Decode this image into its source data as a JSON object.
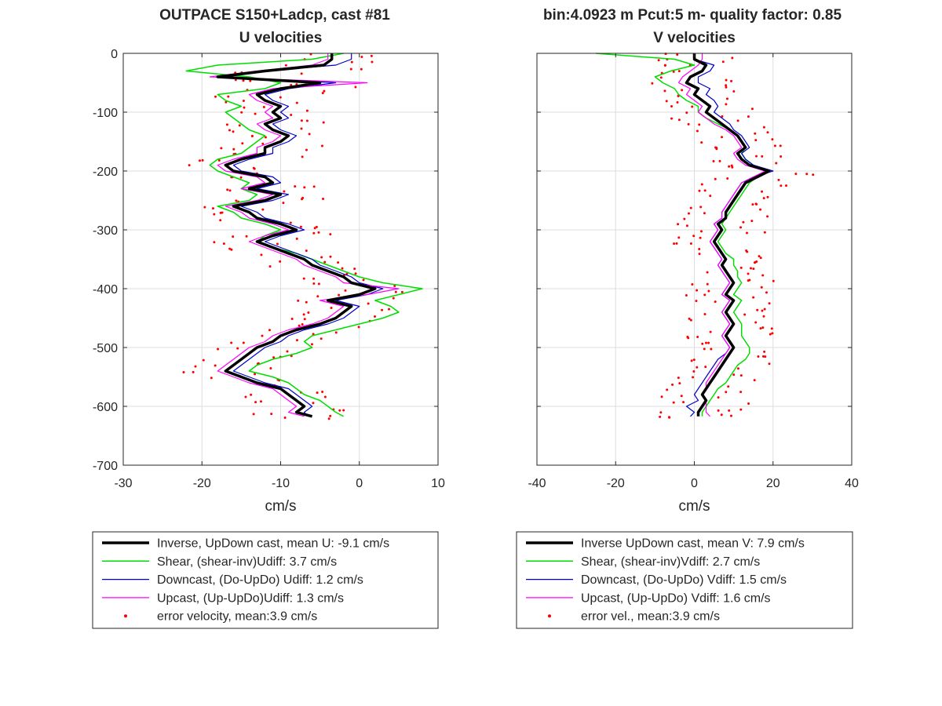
{
  "chart_data": [
    {
      "type": "line",
      "title": "OUTPACE S150+Ladcp, cast #81",
      "subtitle": "U velocities",
      "xlabel": "cm/s",
      "ylabel": "",
      "xlim": [
        -30,
        10
      ],
      "ylim": [
        -700,
        0
      ],
      "xticks": [
        -30,
        -20,
        -10,
        0,
        10
      ],
      "yticks": [
        0,
        -100,
        -200,
        -300,
        -400,
        -500,
        -600,
        -700
      ],
      "grid": true,
      "legend_position": "below",
      "depth": [
        0,
        -10,
        -20,
        -30,
        -40,
        -50,
        -60,
        -70,
        -80,
        -90,
        -100,
        -110,
        -120,
        -130,
        -140,
        -150,
        -160,
        -170,
        -180,
        -190,
        -200,
        -210,
        -220,
        -230,
        -240,
        -250,
        -260,
        -270,
        -280,
        -290,
        -300,
        -310,
        -320,
        -330,
        -340,
        -350,
        -360,
        -370,
        -380,
        -390,
        -400,
        -410,
        -420,
        -430,
        -440,
        -450,
        -460,
        -470,
        -480,
        -490,
        -500,
        -510,
        -520,
        -530,
        -540,
        -550,
        -560,
        -570,
        -580,
        -590,
        -600,
        -610,
        -617
      ],
      "series": [
        {
          "name": "Inverse, UpDown cast, mean U:  -9.1 cm/s",
          "color": "#000000",
          "width": 3.5,
          "values": [
            -3.5,
            -3.5,
            -4.5,
            -12,
            -18,
            -5,
            -10,
            -13,
            -12,
            -10,
            -11,
            -10,
            -12,
            -11,
            -9,
            -10,
            -12,
            -12,
            -15,
            -17,
            -16,
            -12,
            -11,
            -14,
            -10,
            -12,
            -16,
            -14,
            -13,
            -10,
            -8,
            -11,
            -13,
            -11,
            -9,
            -7,
            -6,
            -4,
            -2,
            -1,
            2,
            0,
            -4,
            -1,
            -2,
            -3,
            -5,
            -8,
            -10,
            -11,
            -13,
            -14,
            -15,
            -16,
            -17,
            -15,
            -13,
            -10,
            -9,
            -8,
            -7,
            -8,
            -6
          ]
        },
        {
          "name": "Shear, (shear-inv)Udiff:  3.7 cm/s",
          "color": "#00dd00",
          "width": 1.5,
          "values": [
            -2,
            -6,
            -18,
            -22,
            -14,
            -10,
            -12,
            -18,
            -17,
            -15,
            -17,
            -16,
            -15,
            -14,
            -12,
            -13,
            -14,
            -15,
            -18,
            -19,
            -18,
            -16,
            -14,
            -15,
            -13,
            -14,
            -18,
            -16,
            -15,
            -12,
            -10,
            -12,
            -13,
            -11,
            -8,
            -6,
            -4,
            -2,
            0,
            3,
            8,
            5,
            2,
            4,
            5,
            3,
            0,
            -3,
            -6,
            -7,
            -6,
            -8,
            -11,
            -13,
            -14,
            -11,
            -9,
            -8,
            -7,
            -5,
            -4,
            -3,
            -2
          ]
        },
        {
          "name": "Downcast, (Do-UpDo) Udiff:  1.2 cm/s",
          "color": "#0000cc",
          "width": 1.2,
          "values": [
            -1,
            -1,
            -3,
            -12,
            -17,
            -3,
            -9,
            -12,
            -11,
            -9,
            -10,
            -9,
            -11,
            -10,
            -8,
            -9,
            -11,
            -11,
            -14,
            -16,
            -15,
            -11,
            -10,
            -13,
            -9,
            -11,
            -15,
            -13,
            -12,
            -9,
            -7,
            -10,
            -12,
            -10,
            -8,
            -6,
            -5,
            -3,
            -1,
            0,
            3,
            1,
            -3,
            0,
            -1,
            -2,
            -4,
            -7,
            -9,
            -10,
            -12,
            -13,
            -14,
            -15,
            -16,
            -14,
            -12,
            -9,
            -8,
            -7,
            -6,
            -7,
            -6.5
          ]
        },
        {
          "name": "Upcast, (Up-UpDo)Udiff:  1.3 cm/s",
          "color": "#ff00ff",
          "width": 1.2,
          "values": [
            -4,
            -4,
            -6,
            -13,
            -19,
            1,
            -11,
            -14,
            -13,
            -11,
            -12,
            -11,
            -13,
            -12,
            -10,
            -11,
            -13,
            -13,
            -16,
            -18,
            -17,
            -13,
            -12,
            -15,
            -11,
            -13,
            -17,
            -15,
            -14,
            -11,
            -9,
            -12,
            -14,
            -12,
            -10,
            -8,
            -7,
            -5,
            -3,
            -2,
            5,
            1,
            -5,
            -2,
            -3,
            -4,
            -6,
            -9,
            -11,
            -12,
            -14,
            -15,
            -16,
            -17,
            -18,
            -16,
            -14,
            -11,
            -10,
            -9,
            -8,
            -9,
            -7
          ]
        }
      ],
      "error_series": {
        "name": "error velocity, mean:3.9 cm/s",
        "color": "#ff0000"
      }
    },
    {
      "type": "line",
      "title": "bin:4.0923 m  Pcut:5 m- quality factor:  0.85",
      "subtitle": "V velocities",
      "xlabel": "cm/s",
      "ylabel": "",
      "xlim": [
        -40,
        40
      ],
      "ylim": [
        -700,
        0
      ],
      "xticks": [
        -40,
        -20,
        0,
        20,
        40
      ],
      "yticks": [
        0,
        -100,
        -200,
        -300,
        -400,
        -500,
        -600,
        -700
      ],
      "grid": true,
      "legend_position": "below",
      "depth": [
        0,
        -10,
        -20,
        -30,
        -40,
        -50,
        -60,
        -70,
        -80,
        -90,
        -100,
        -110,
        -120,
        -130,
        -140,
        -150,
        -160,
        -170,
        -180,
        -190,
        -200,
        -210,
        -220,
        -230,
        -240,
        -250,
        -260,
        -270,
        -280,
        -290,
        -300,
        -310,
        -320,
        -330,
        -340,
        -350,
        -360,
        -370,
        -380,
        -390,
        -400,
        -410,
        -420,
        -430,
        -440,
        -450,
        -460,
        -470,
        -480,
        -490,
        -500,
        -510,
        -520,
        -530,
        -540,
        -550,
        -560,
        -570,
        -580,
        -590,
        -600,
        -610,
        -617
      ],
      "series": [
        {
          "name": "Inverse UpDown cast, mean V:  7.9 cm/s",
          "color": "#000000",
          "width": 3.5,
          "values": [
            0,
            0,
            3,
            2,
            -1,
            -2,
            1,
            0,
            2,
            4,
            3,
            5,
            7,
            9,
            11,
            12,
            13,
            11,
            12,
            14,
            19,
            16,
            13,
            12,
            11,
            10,
            9,
            8,
            8,
            6,
            7,
            6,
            5,
            6,
            7,
            8,
            7,
            8,
            9,
            10,
            9,
            8,
            10,
            9,
            8,
            9,
            10,
            9,
            8,
            9,
            10,
            9,
            8,
            7,
            6,
            5,
            4,
            3,
            2,
            3,
            2,
            1,
            1
          ]
        },
        {
          "name": "Shear, (shear-inv)Vdiff:  2.7 cm/s",
          "color": "#00dd00",
          "width": 1.5,
          "values": [
            -25,
            -5,
            0,
            -6,
            -10,
            -8,
            -5,
            -4,
            -2,
            1,
            1,
            3,
            6,
            9,
            11,
            12,
            13,
            12,
            13,
            15,
            19,
            16,
            14,
            13,
            12,
            11,
            10,
            9,
            8,
            7,
            8,
            7,
            6,
            7,
            8,
            10,
            10,
            11,
            11,
            12,
            11,
            10,
            12,
            11,
            10,
            11,
            12,
            12,
            12,
            13,
            14,
            14,
            13,
            11,
            10,
            9,
            8,
            6,
            5,
            4,
            3,
            2,
            2
          ]
        },
        {
          "name": "Downcast, (Do-UpDo) Vdiff:  1.5 cm/s",
          "color": "#0000cc",
          "width": 1.2,
          "values": [
            0,
            0,
            5,
            4,
            1,
            1,
            4,
            3,
            5,
            6,
            5,
            7,
            9,
            10,
            12,
            13,
            14,
            12,
            13,
            15,
            20,
            15,
            12,
            11,
            10,
            9,
            8,
            7,
            7,
            5,
            6,
            5,
            4,
            5,
            6,
            7,
            6,
            7,
            8,
            9,
            8,
            7,
            9,
            8,
            7,
            8,
            9,
            8,
            7,
            8,
            9,
            8,
            6,
            5,
            4,
            3,
            2,
            1,
            0,
            1,
            -2,
            0,
            -1
          ]
        },
        {
          "name": "Upcast, (Up-UpDo) Vdiff:  1.6 cm/s",
          "color": "#ff00ff",
          "width": 1.2,
          "values": [
            2,
            2,
            1,
            -1,
            -3,
            -4,
            -1,
            -2,
            0,
            2,
            1,
            3,
            5,
            8,
            10,
            11,
            12,
            10,
            11,
            13,
            18,
            15,
            12,
            11,
            10,
            9,
            8,
            7,
            7,
            5,
            6,
            5,
            4,
            5,
            6,
            7,
            6,
            7,
            8,
            9,
            8,
            7,
            9,
            8,
            7,
            8,
            9,
            8,
            7,
            8,
            9,
            8,
            7,
            6,
            5,
            4,
            3,
            3,
            2,
            3,
            3,
            3,
            4
          ]
        }
      ],
      "error_series": {
        "name": "error vel., mean:3.9 cm/s",
        "color": "#ff0000"
      }
    }
  ]
}
